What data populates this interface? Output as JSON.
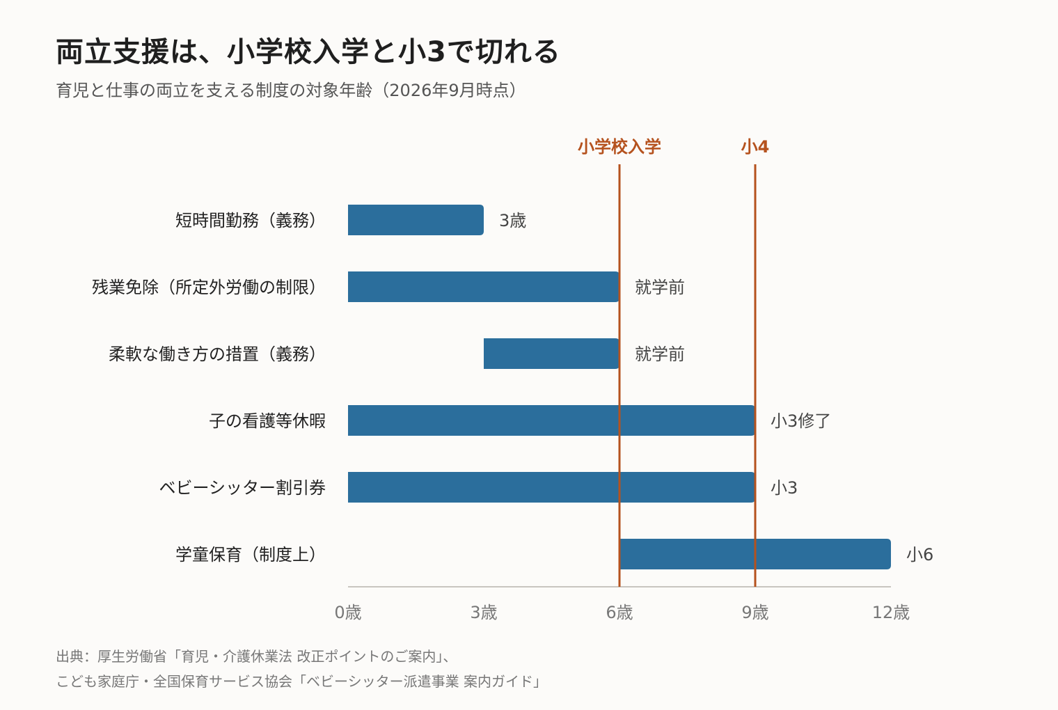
{
  "title": "両立支援は、小学校入学と小3で切れる",
  "subtitle": "育児と仕事の両立を支える制度の対象年齢（2026年9月時点）",
  "source": {
    "line1": "出典：厚生労働省「育児・介護休業法 改正ポイントのご案内」、",
    "line2": "こども家庭庁・全国保育サービス協会「ベビーシッター派遣事業 案内ガイド」"
  },
  "colors": {
    "bar": "#2b6e9c",
    "reference": "#b5521e",
    "axis": "#c8c5c0",
    "label": "#222222",
    "tick": "#777777"
  },
  "chart_data": {
    "type": "bar",
    "orientation": "horizontal",
    "xlim": [
      0,
      12
    ],
    "ticks": [
      {
        "value": 0,
        "label": "0歳"
      },
      {
        "value": 3,
        "label": "3歳"
      },
      {
        "value": 6,
        "label": "6歳"
      },
      {
        "value": 9,
        "label": "9歳"
      },
      {
        "value": 12,
        "label": "12歳"
      }
    ],
    "bars": [
      {
        "category": "短時間勤務（義務）",
        "start": 0,
        "end": 3,
        "label": "3歳"
      },
      {
        "category": "残業免除（所定外労働の制限）",
        "start": 0,
        "end": 6,
        "label": "就学前"
      },
      {
        "category": "柔軟な働き方の措置（義務）",
        "start": 3,
        "end": 6,
        "label": "就学前"
      },
      {
        "category": "子の看護等休暇",
        "start": 0,
        "end": 9,
        "label": "小3修了"
      },
      {
        "category": "ベビーシッター割引券",
        "start": 0,
        "end": 9,
        "label": "小3"
      },
      {
        "category": "学童保育（制度上）",
        "start": 6,
        "end": 12,
        "label": "小6"
      }
    ],
    "reference_lines": [
      {
        "value": 6,
        "label": "小学校入学"
      },
      {
        "value": 9,
        "label": "小4"
      }
    ]
  }
}
